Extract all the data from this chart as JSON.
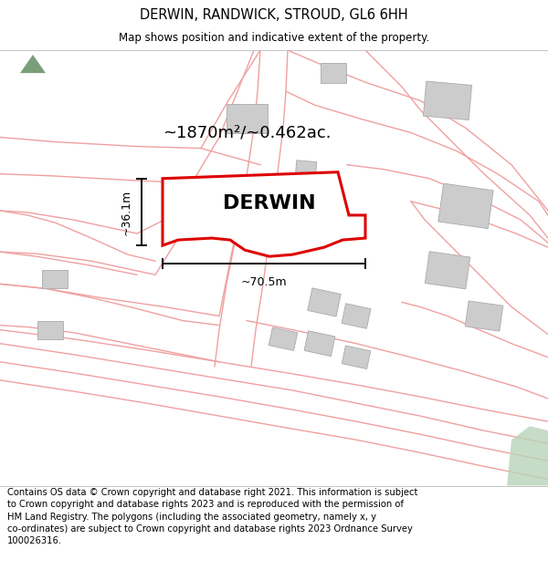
{
  "title": "DERWIN, RANDWICK, STROUD, GL6 6HH",
  "subtitle": "Map shows position and indicative extent of the property.",
  "footer": "Contains OS data © Crown copyright and database right 2021. This information is subject to Crown copyright and database rights 2023 and is reproduced with the permission of HM Land Registry. The polygons (including the associated geometry, namely x, y co-ordinates) are subject to Crown copyright and database rights 2023 Ordnance Survey 100026316.",
  "area_text": "~1870m²/~0.462ac.",
  "property_label": "DERWIN",
  "dim_width": "~70.5m",
  "dim_height": "~36.1m",
  "red_color": "#dd0000",
  "light_red": "#f0a0a0",
  "gray_building": "#cccccc",
  "green_patch": "#b8d4b8",
  "bg_color": "#f8f8f8"
}
